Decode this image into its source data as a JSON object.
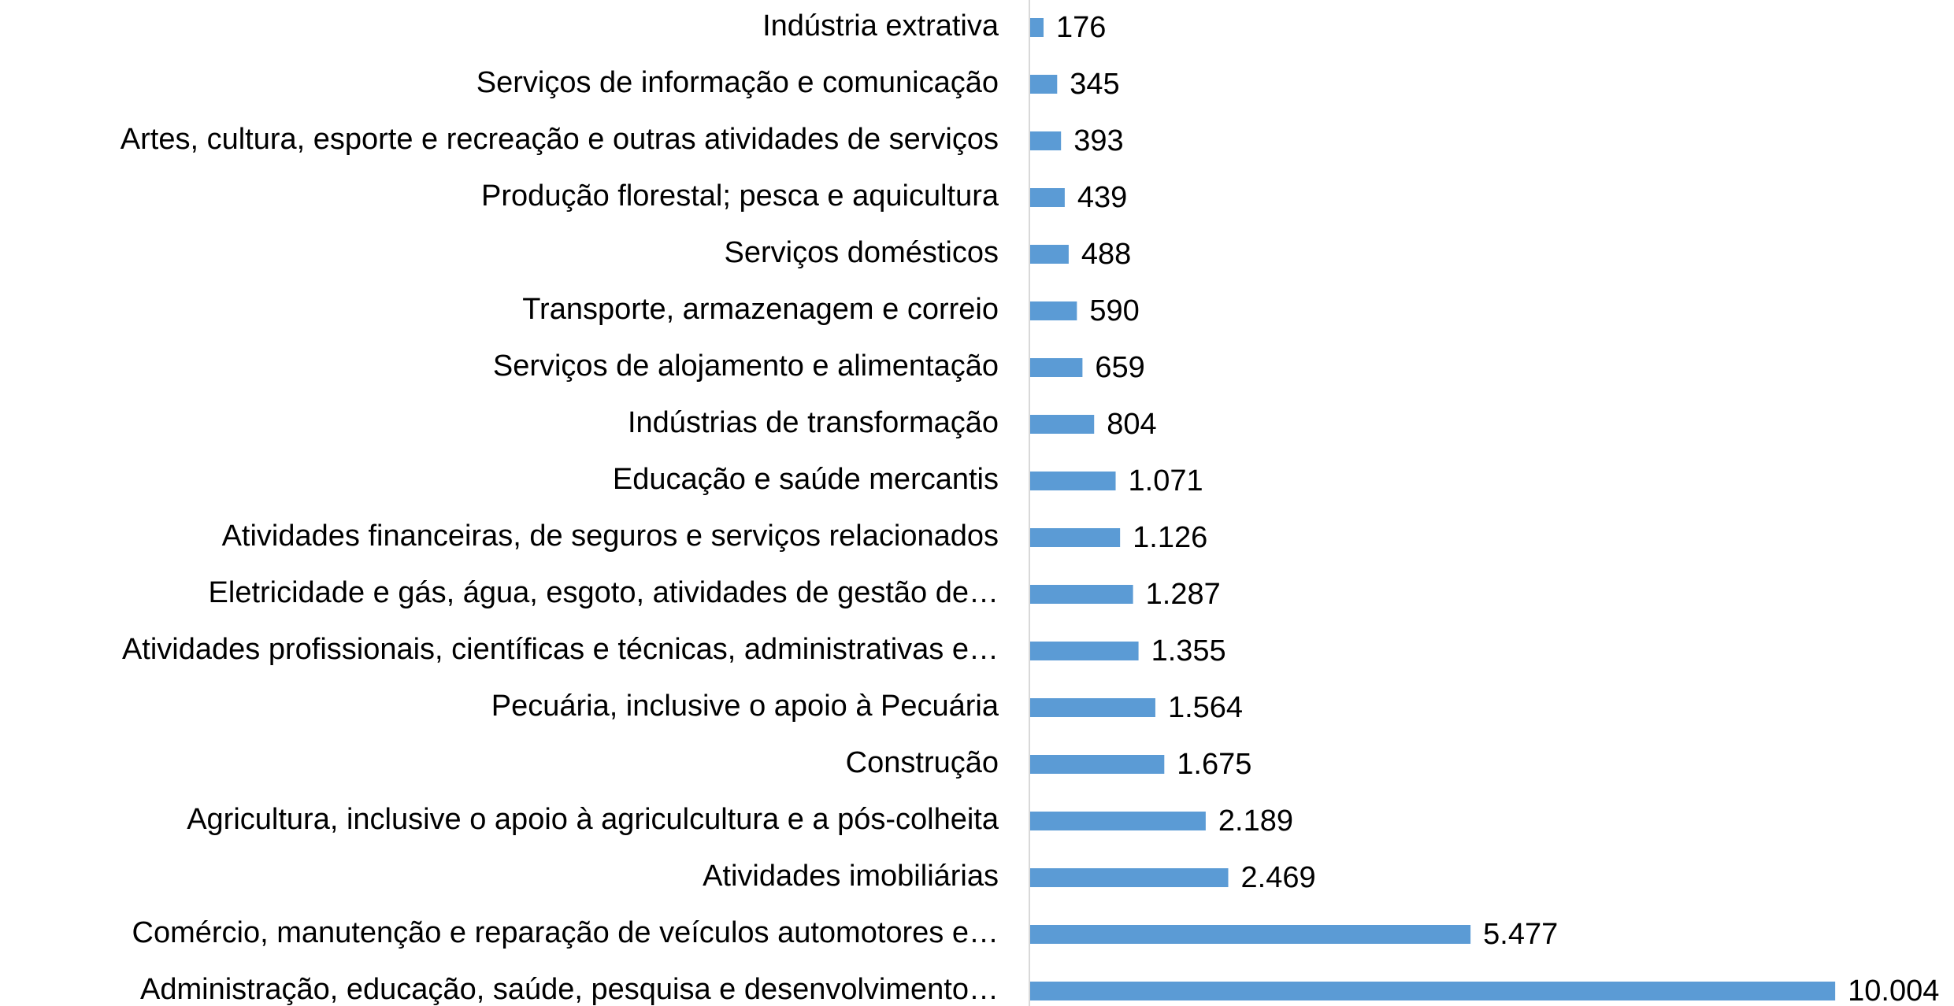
{
  "chart_data": {
    "type": "hbar",
    "categories": [
      "Indústria extrativa",
      "Serviços de informação e comunicação",
      "Artes, cultura, esporte e recreação e outras atividades de serviços",
      "Produção florestal; pesca e aquicultura",
      "Serviços domésticos",
      "Transporte, armazenagem e correio",
      "Serviços de alojamento e alimentação",
      "Indústrias de transformação",
      "Educação e saúde mercantis",
      "Atividades financeiras, de seguros e serviços relacionados",
      "Eletricidade e gás, água, esgoto, atividades de gestão de…",
      "Atividades profissionais, científicas e técnicas, administrativas e…",
      "Pecuária, inclusive o apoio à Pecuária",
      "Construção",
      "Agricultura, inclusive o apoio à agriculcultura e a pós-colheita",
      "Atividades imobiliárias",
      "Comércio, manutenção e reparação de veículos automotores e…",
      "Administração, educação, saúde, pesquisa e desenvolvimento…"
    ],
    "values": [
      176,
      345,
      393,
      439,
      488,
      590,
      659,
      804,
      1071,
      1126,
      1287,
      1355,
      1564,
      1675,
      2189,
      2469,
      5477,
      10004
    ],
    "value_labels": [
      "176",
      "345",
      "393",
      "439",
      "488",
      "590",
      "659",
      "804",
      "1.071",
      "1.126",
      "1.287",
      "1.355",
      "1.564",
      "1.675",
      "2.189",
      "2.469",
      "5.477",
      "10.004"
    ],
    "color": "#5b9bd5",
    "xlim": [
      0,
      11000
    ]
  }
}
